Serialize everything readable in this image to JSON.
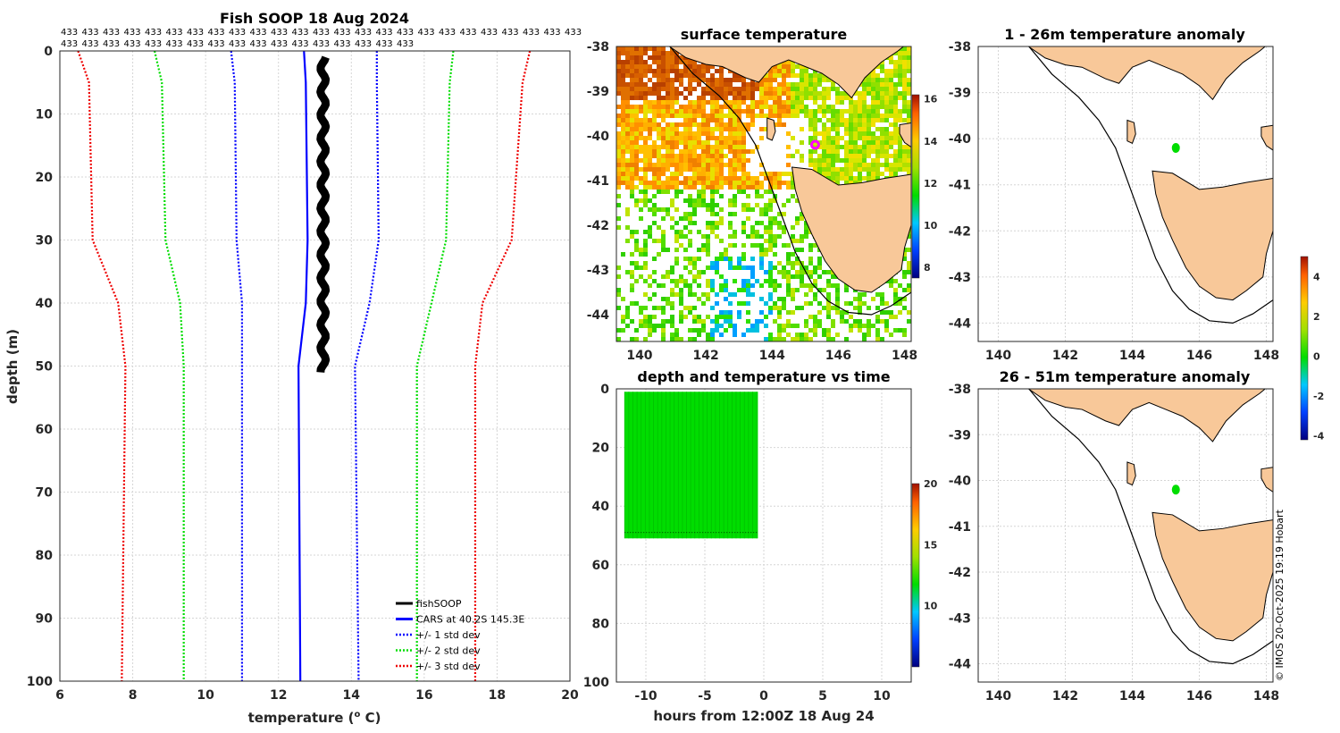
{
  "colors": {
    "fish": "#000000",
    "cars": "#0000ff",
    "std1": "#0000ff",
    "std2": "#00dd00",
    "std3": "#ee0000",
    "land": "#f8c899",
    "trace": "#00dd00"
  },
  "credit": "© IMOS 20-Oct-2025 19:19 Hobart",
  "chart_data": [
    {
      "id": "profile",
      "type": "line",
      "title": "Fish SOOP 18 Aug 2024",
      "header_label": "433",
      "header_rows": [
        25,
        17
      ],
      "xlabel": "temperature (",
      "xlabel_sup": "o",
      "xlabel_end": " C)",
      "ylabel": "depth (m)",
      "xlim": [
        6,
        20
      ],
      "ylim": [
        0,
        100
      ],
      "xticks": [
        6,
        8,
        10,
        12,
        14,
        16,
        18,
        20
      ],
      "yticks": [
        0,
        10,
        20,
        30,
        40,
        50,
        60,
        70,
        80,
        90,
        100
      ],
      "depth_levels": [
        0,
        5,
        30,
        40,
        50,
        100
      ],
      "cars": [
        12.7,
        12.75,
        12.8,
        12.75,
        12.55,
        12.6
      ],
      "std1_minus": [
        10.7,
        10.8,
        10.85,
        11,
        11,
        11
      ],
      "std1_plus": [
        14.7,
        14.7,
        14.75,
        14.5,
        14.1,
        14.2
      ],
      "std2_minus": [
        8.6,
        8.8,
        8.9,
        9.3,
        9.4,
        9.4
      ],
      "std2_plus": [
        16.8,
        16.7,
        16.6,
        16.2,
        15.8,
        15.8
      ],
      "std3_minus": [
        6.5,
        6.8,
        6.9,
        7.6,
        7.8,
        7.7
      ],
      "std3_plus": [
        18.9,
        18.7,
        18.4,
        17.6,
        17.4,
        17.4
      ],
      "fish_depth": [
        1,
        51
      ],
      "fish_temp": [
        13.2,
        13.25
      ],
      "legend": [
        "fishSOOP",
        "CARS at 40.2S 145.3E",
        "+/- 1 std dev",
        "+/- 2 std dev",
        "+/- 3 std dev"
      ]
    },
    {
      "id": "sst",
      "type": "heatmap",
      "title": "surface temperature",
      "xlim": [
        139.3,
        148.2
      ],
      "ylim": [
        -44.6,
        -38
      ],
      "xticks": [
        140,
        142,
        144,
        146,
        148
      ],
      "yticks": [
        -38,
        -39,
        -40,
        -41,
        -42,
        -43,
        -44
      ],
      "colorbar": {
        "min": 7.5,
        "max": 16.2,
        "ticks": [
          8,
          10,
          12,
          14,
          16
        ]
      },
      "marker": {
        "lon": 145.3,
        "lat": -40.2
      }
    },
    {
      "id": "time",
      "type": "scatter",
      "title": "depth and temperature vs time",
      "xlabel": "hours from 12:00Z 18 Aug 24",
      "xlim": [
        -12.5,
        12.5
      ],
      "ylim": [
        0,
        100
      ],
      "xticks": [
        -10,
        -5,
        0,
        5,
        10
      ],
      "yticks": [
        0,
        20,
        40,
        60,
        80,
        100
      ],
      "hours_range": [
        -11.8,
        -0.5
      ],
      "depth_range": [
        1,
        51
      ],
      "colorbar": {
        "min": 5,
        "max": 20,
        "ticks": [
          10,
          15,
          20
        ]
      }
    },
    {
      "id": "anom1",
      "type": "scatter",
      "title": "1 - 26m temperature anomaly",
      "xlim": [
        139.4,
        148.2
      ],
      "ylim": [
        -44.4,
        -38
      ],
      "xticks": [
        140,
        142,
        144,
        146,
        148
      ],
      "yticks": [
        -38,
        -39,
        -40,
        -41,
        -42,
        -43,
        -44
      ],
      "point": {
        "lon": 145.3,
        "lat": -40.2,
        "anomaly": 0.2
      }
    },
    {
      "id": "anom2",
      "type": "scatter",
      "title": "26 - 51m temperature anomaly",
      "xlim": [
        139.4,
        148.2
      ],
      "ylim": [
        -44.4,
        -38
      ],
      "xticks": [
        140,
        142,
        144,
        146,
        148
      ],
      "yticks": [
        -38,
        -39,
        -40,
        -41,
        -42,
        -43,
        -44
      ],
      "point": {
        "lon": 145.3,
        "lat": -40.2,
        "anomaly": 0.3
      },
      "colorbar": {
        "min": -4.2,
        "max": 5,
        "ticks": [
          -4,
          -2,
          0,
          2,
          4
        ]
      }
    }
  ]
}
